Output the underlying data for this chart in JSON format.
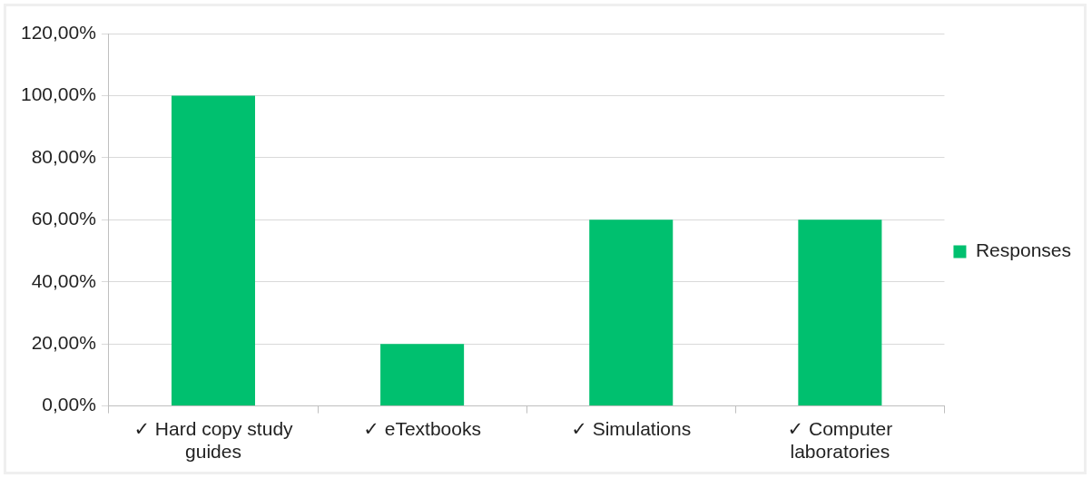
{
  "chart_data": {
    "type": "bar",
    "categories": [
      "✓ Hard copy study guides",
      "✓ eTextbooks",
      "✓ Simulations",
      "✓ Computer laboratories"
    ],
    "series": [
      {
        "name": "Responses",
        "color": "#00c06f",
        "values": [
          100,
          20,
          60,
          60
        ]
      }
    ],
    "ylim": [
      0,
      120
    ],
    "yticks": [
      {
        "value": 0,
        "label": "0,00%"
      },
      {
        "value": 20,
        "label": "20,00%"
      },
      {
        "value": 40,
        "label": "40,00%"
      },
      {
        "value": 60,
        "label": "60,00%"
      },
      {
        "value": 80,
        "label": "80,00%"
      },
      {
        "value": 100,
        "label": "100,00%"
      },
      {
        "value": 120,
        "label": "120,00%"
      }
    ],
    "grid": "y",
    "legend": "right"
  }
}
